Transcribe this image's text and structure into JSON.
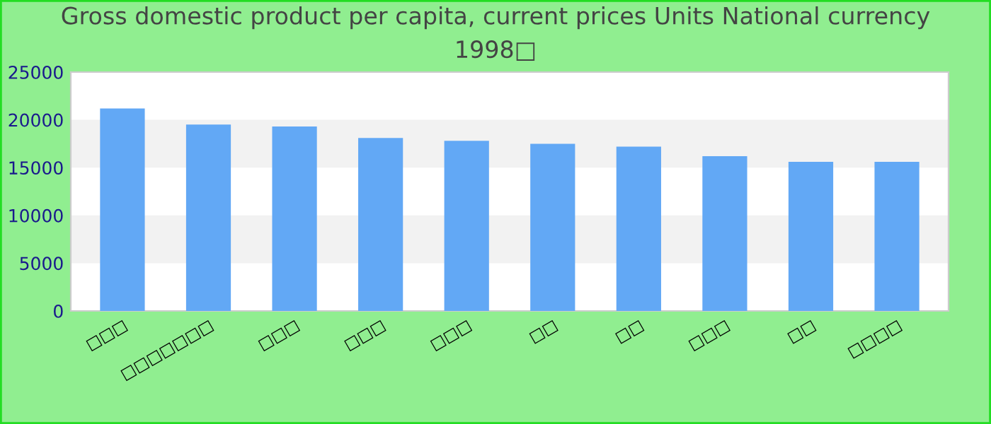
{
  "chart_data": {
    "type": "bar",
    "title": "Gross domestic product per capita, current prices Units National currency\n1998□",
    "categories": [
      "□□□",
      "□□□□□□□",
      "□□□",
      "□□□",
      "□□□",
      "□□",
      "□□",
      "□□□",
      "□□",
      "□□□□"
    ],
    "values": [
      21200,
      19500,
      19300,
      18100,
      17800,
      17500,
      17200,
      16200,
      15600,
      15600
    ],
    "color": "#62a8f5",
    "ylim": [
      0,
      25000
    ],
    "yticks": [
      0,
      5000,
      10000,
      15000,
      20000,
      25000
    ]
  }
}
